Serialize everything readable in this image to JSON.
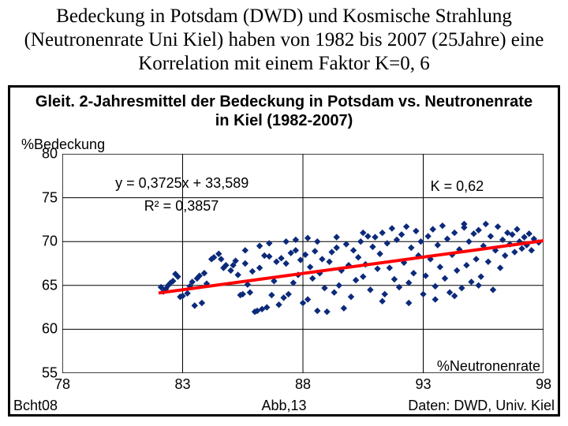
{
  "caption": "Bedeckung in Potsdam (DWD) und Kosmische Strahlung (Neutronenrate Uni Kiel) haben von 1982 bis 2007 (25Jahre) eine Korrelation mit einem Faktor K=0, 6",
  "chart": {
    "type": "scatter",
    "title": "Gleit. 2-Jahresmittel der Bedeckung in Potsdam vs. Neutronenrate in Kiel (1982-2007)",
    "y_axis_label": "%Bedeckung",
    "x_axis_label": "%Neutronenrate",
    "credits": {
      "left": "Bcht08",
      "center": "Abb,13",
      "right": "Daten: DWD, Univ. Kiel"
    },
    "equation": "y = 0,3725x + 33,589",
    "r_squared": "R² = 0,3857",
    "k_value": "K = 0,62",
    "xlim": [
      78,
      98
    ],
    "ylim": [
      55,
      80
    ],
    "xticks": [
      78,
      83,
      88,
      93,
      98
    ],
    "yticks": [
      55,
      60,
      65,
      70,
      75,
      80
    ],
    "background_color": "#ffffff",
    "grid_color": "#000000",
    "tick_fontsize": 18,
    "label_fontsize": 18,
    "title_fontsize": 20,
    "scatter": {
      "color": "#0c2a7a",
      "marker": "diamond",
      "marker_size": 7,
      "points": [
        [
          82.1,
          64.8
        ],
        [
          82.2,
          64.3
        ],
        [
          82.3,
          64.6
        ],
        [
          82.4,
          65.0
        ],
        [
          82.5,
          65.3
        ],
        [
          82.6,
          65.5
        ],
        [
          82.7,
          66.3
        ],
        [
          82.8,
          66.0
        ],
        [
          82.9,
          63.7
        ],
        [
          83.0,
          63.8
        ],
        [
          83.2,
          64.1
        ],
        [
          83.3,
          64.9
        ],
        [
          83.4,
          65.4
        ],
        [
          83.5,
          62.7
        ],
        [
          83.6,
          65.8
        ],
        [
          83.7,
          66.1
        ],
        [
          83.8,
          63.0
        ],
        [
          83.9,
          66.4
        ],
        [
          84.0,
          65.2
        ],
        [
          84.2,
          68.0
        ],
        [
          84.3,
          68.2
        ],
        [
          84.5,
          68.6
        ],
        [
          84.6,
          68.0
        ],
        [
          84.7,
          67.0
        ],
        [
          84.8,
          67.3
        ],
        [
          85.0,
          66.7
        ],
        [
          85.1,
          67.3
        ],
        [
          85.2,
          67.8
        ],
        [
          85.3,
          66.2
        ],
        [
          85.4,
          63.9
        ],
        [
          85.5,
          64.0
        ],
        [
          85.6,
          67.5
        ],
        [
          85.7,
          65.1
        ],
        [
          85.8,
          64.2
        ],
        [
          85.9,
          66.6
        ],
        [
          85.6,
          69.0
        ],
        [
          86.0,
          62.0
        ],
        [
          86.1,
          62.1
        ],
        [
          86.2,
          67.0
        ],
        [
          86.3,
          62.3
        ],
        [
          86.4,
          68.4
        ],
        [
          86.5,
          62.5
        ],
        [
          86.6,
          68.3
        ],
        [
          86.7,
          63.9
        ],
        [
          86.8,
          65.5
        ],
        [
          86.9,
          67.7
        ],
        [
          86.2,
          69.5
        ],
        [
          86.6,
          69.8
        ],
        [
          87.0,
          62.8
        ],
        [
          87.1,
          68.1
        ],
        [
          87.2,
          63.6
        ],
        [
          87.3,
          67.5
        ],
        [
          87.4,
          64.0
        ],
        [
          87.5,
          68.7
        ],
        [
          87.6,
          65.3
        ],
        [
          87.7,
          69.0
        ],
        [
          87.8,
          66.2
        ],
        [
          87.9,
          67.9
        ],
        [
          87.3,
          70.0
        ],
        [
          87.7,
          70.2
        ],
        [
          88.0,
          63.0
        ],
        [
          88.1,
          68.5
        ],
        [
          88.2,
          63.4
        ],
        [
          88.3,
          67.1
        ],
        [
          88.4,
          65.8
        ],
        [
          88.5,
          68.9
        ],
        [
          88.6,
          62.1
        ],
        [
          88.7,
          66.4
        ],
        [
          88.8,
          68.0
        ],
        [
          88.9,
          64.7
        ],
        [
          88.2,
          70.4
        ],
        [
          88.6,
          70.0
        ],
        [
          89.0,
          62.0
        ],
        [
          89.1,
          67.7
        ],
        [
          89.2,
          68.8
        ],
        [
          89.3,
          64.2
        ],
        [
          89.4,
          69.3
        ],
        [
          89.5,
          65.0
        ],
        [
          89.6,
          66.7
        ],
        [
          89.7,
          62.4
        ],
        [
          89.8,
          69.7
        ],
        [
          89.9,
          67.3
        ],
        [
          89.4,
          70.5
        ],
        [
          90.0,
          63.7
        ],
        [
          90.1,
          69.0
        ],
        [
          90.2,
          65.6
        ],
        [
          90.3,
          68.2
        ],
        [
          90.4,
          70.0
        ],
        [
          90.5,
          66.0
        ],
        [
          90.6,
          67.4
        ],
        [
          90.7,
          70.6
        ],
        [
          90.8,
          64.5
        ],
        [
          90.9,
          69.4
        ],
        [
          90.5,
          71.0
        ],
        [
          91.0,
          70.5
        ],
        [
          91.1,
          66.9
        ],
        [
          91.2,
          68.6
        ],
        [
          91.3,
          71.0
        ],
        [
          91.4,
          64.0
        ],
        [
          91.5,
          69.8
        ],
        [
          91.6,
          67.0
        ],
        [
          91.7,
          71.5
        ],
        [
          91.8,
          65.7
        ],
        [
          91.9,
          70.2
        ],
        [
          91.3,
          63.2
        ],
        [
          92.0,
          64.8
        ],
        [
          92.1,
          70.8
        ],
        [
          92.2,
          67.6
        ],
        [
          92.3,
          71.7
        ],
        [
          92.4,
          65.3
        ],
        [
          92.5,
          69.3
        ],
        [
          92.6,
          66.4
        ],
        [
          92.7,
          71.2
        ],
        [
          92.8,
          68.4
        ],
        [
          92.9,
          70.0
        ],
        [
          92.4,
          63.0
        ],
        [
          93.0,
          64.0
        ],
        [
          93.1,
          66.1
        ],
        [
          93.2,
          70.6
        ],
        [
          93.3,
          68.0
        ],
        [
          93.4,
          71.4
        ],
        [
          93.5,
          64.9
        ],
        [
          93.6,
          69.6
        ],
        [
          93.7,
          67.1
        ],
        [
          93.8,
          71.8
        ],
        [
          93.9,
          65.8
        ],
        [
          93.5,
          63.4
        ],
        [
          94.0,
          70.3
        ],
        [
          94.1,
          64.2
        ],
        [
          94.2,
          68.5
        ],
        [
          94.3,
          71.0
        ],
        [
          94.4,
          66.7
        ],
        [
          94.5,
          69.1
        ],
        [
          94.6,
          64.7
        ],
        [
          94.7,
          71.6
        ],
        [
          94.8,
          67.3
        ],
        [
          94.9,
          70.0
        ],
        [
          94.3,
          63.8
        ],
        [
          94.7,
          72.0
        ],
        [
          95.0,
          65.4
        ],
        [
          95.1,
          70.9
        ],
        [
          95.2,
          68.0
        ],
        [
          95.3,
          71.3
        ],
        [
          95.4,
          66.0
        ],
        [
          95.5,
          69.5
        ],
        [
          95.6,
          72.0
        ],
        [
          95.7,
          67.7
        ],
        [
          95.8,
          70.6
        ],
        [
          95.9,
          64.5
        ],
        [
          95.3,
          65.0
        ],
        [
          96.0,
          69.0
        ],
        [
          96.1,
          71.7
        ],
        [
          96.2,
          67.0
        ],
        [
          96.3,
          70.2
        ],
        [
          96.4,
          68.4
        ],
        [
          96.5,
          71.0
        ],
        [
          96.6,
          69.7
        ],
        [
          96.7,
          70.8
        ],
        [
          96.8,
          68.8
        ],
        [
          96.9,
          71.4
        ],
        [
          97.0,
          70.0
        ],
        [
          97.1,
          69.2
        ],
        [
          97.2,
          70.5
        ],
        [
          97.3,
          69.6
        ],
        [
          97.4,
          70.9
        ],
        [
          97.5,
          69.0
        ],
        [
          97.6,
          70.3
        ],
        [
          97.8,
          69.9
        ]
      ]
    },
    "trendline": {
      "color": "#ff0000",
      "width": 4,
      "slope": 0.3725,
      "intercept": 33.589,
      "x_from": 82,
      "x_to": 98
    }
  }
}
